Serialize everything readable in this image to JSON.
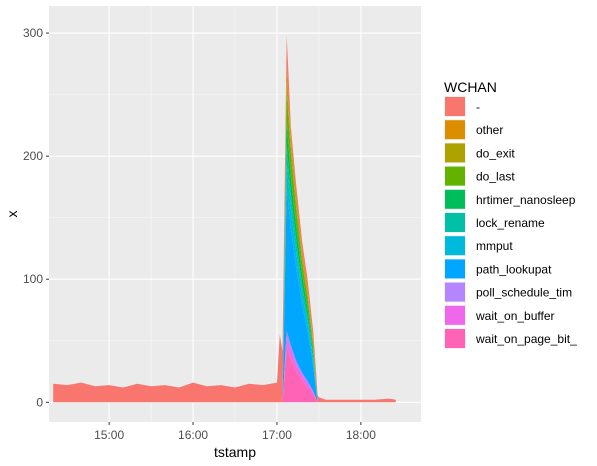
{
  "chart_data": {
    "type": "area",
    "stacked": true,
    "title": "",
    "xlabel": "tstamp",
    "ylabel": "x",
    "x_tick_labels": [
      "15:00",
      "16:00",
      "17:00",
      "18:00"
    ],
    "y_ticks": [
      0,
      100,
      200,
      300
    ],
    "xlim": [
      "14:17",
      "18:43"
    ],
    "ylim": [
      -16,
      322
    ],
    "grid": true,
    "legend": {
      "title": "WCHAN",
      "position": "right"
    },
    "series": [
      {
        "name": "-",
        "color": "#F8766D",
        "x": [
          "14:20",
          "14:30",
          "14:40",
          "14:50",
          "15:00",
          "15:10",
          "15:20",
          "15:30",
          "15:40",
          "15:50",
          "16:00",
          "16:10",
          "16:20",
          "16:30",
          "16:40",
          "16:50",
          "17:00",
          "17:02",
          "17:05",
          "17:08",
          "17:10",
          "17:13",
          "17:16",
          "17:19",
          "17:22",
          "17:25",
          "17:28",
          "17:30",
          "17:35",
          "17:40",
          "17:50",
          "18:00",
          "18:10",
          "18:20",
          "18:25"
        ],
        "values": [
          15,
          14,
          16,
          13,
          14,
          12,
          15,
          13,
          14,
          12,
          16,
          13,
          14,
          12,
          15,
          14,
          16,
          55,
          35,
          20,
          8,
          8,
          8,
          8,
          8,
          8,
          8,
          4,
          2,
          2,
          2,
          2,
          2,
          3,
          2
        ]
      },
      {
        "name": "other",
        "color": "#DB8E00",
        "x": [
          "17:04",
          "17:07",
          "17:10",
          "17:14",
          "17:18",
          "17:22",
          "17:26",
          "17:29"
        ],
        "values": [
          0,
          12,
          8,
          6,
          5,
          4,
          2,
          0
        ]
      },
      {
        "name": "do_exit",
        "color": "#AEA200",
        "x": [
          "17:04",
          "17:07",
          "17:10",
          "17:14",
          "17:18",
          "17:22",
          "17:26",
          "17:29"
        ],
        "values": [
          0,
          8,
          6,
          5,
          4,
          3,
          2,
          0
        ]
      },
      {
        "name": "do_last",
        "color": "#64B200",
        "x": [
          "17:04",
          "17:07",
          "17:10",
          "17:14",
          "17:18",
          "17:22",
          "17:26",
          "17:29"
        ],
        "values": [
          0,
          25,
          18,
          14,
          10,
          8,
          5,
          0
        ]
      },
      {
        "name": "hrtimer_nanosleep",
        "color": "#00BD5C",
        "x": [
          "17:04",
          "17:07",
          "17:10",
          "17:14",
          "17:18",
          "17:22",
          "17:26",
          "17:29"
        ],
        "values": [
          0,
          20,
          15,
          12,
          9,
          7,
          4,
          0
        ]
      },
      {
        "name": "lock_rename",
        "color": "#00C1A7",
        "x": [
          "17:04",
          "17:07",
          "17:10",
          "17:14",
          "17:18",
          "17:22",
          "17:26",
          "17:29"
        ],
        "values": [
          0,
          15,
          11,
          9,
          7,
          5,
          3,
          0
        ]
      },
      {
        "name": "mmput",
        "color": "#00BADE",
        "x": [
          "17:04",
          "17:07",
          "17:10",
          "17:14",
          "17:18",
          "17:22",
          "17:26",
          "17:29"
        ],
        "values": [
          0,
          20,
          16,
          12,
          9,
          7,
          4,
          0
        ]
      },
      {
        "name": "path_lookupat",
        "color": "#00A6FF",
        "x": [
          "17:04",
          "17:07",
          "17:10",
          "17:14",
          "17:18",
          "17:22",
          "17:26",
          "17:29"
        ],
        "values": [
          0,
          115,
          95,
          75,
          55,
          40,
          20,
          0
        ]
      },
      {
        "name": "poll_schedule_tim",
        "color": "#B385FF",
        "x": [
          "17:04",
          "17:07",
          "17:10",
          "17:14",
          "17:18",
          "17:22",
          "17:26",
          "17:29"
        ],
        "values": [
          0,
          5,
          4,
          3,
          2,
          2,
          1,
          0
        ]
      },
      {
        "name": "wait_on_buffer",
        "color": "#EF67EB",
        "x": [
          "17:04",
          "17:07",
          "17:10",
          "17:14",
          "17:18",
          "17:22",
          "17:26",
          "17:29"
        ],
        "values": [
          0,
          8,
          7,
          5,
          4,
          3,
          2,
          0
        ]
      },
      {
        "name": "wait_on_page_bit_",
        "color": "#FF63B6",
        "x": [
          "17:04",
          "17:07",
          "17:10",
          "17:14",
          "17:18",
          "17:22",
          "17:26",
          "17:29"
        ],
        "values": [
          0,
          45,
          35,
          25,
          18,
          12,
          6,
          0
        ]
      }
    ]
  }
}
